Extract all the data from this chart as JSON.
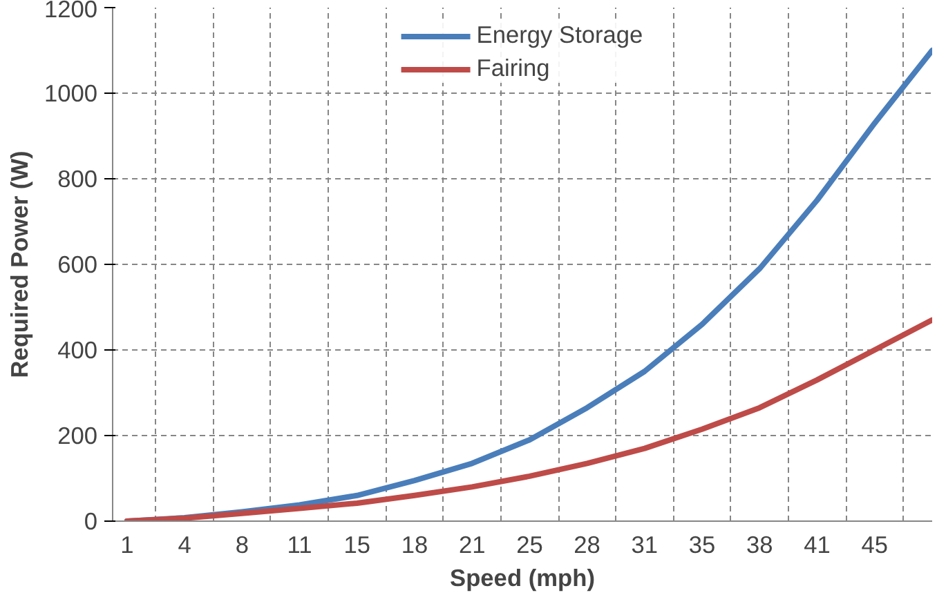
{
  "chart_data": {
    "type": "line",
    "xlabel": "Speed (mph)",
    "ylabel": "Required Power (W)",
    "categories": [
      "1",
      "4",
      "8",
      "11",
      "15",
      "18",
      "21",
      "25",
      "28",
      "31",
      "35",
      "38",
      "41",
      "45",
      null
    ],
    "series": [
      {
        "name": "Energy Storage",
        "color": "#4a7ebb",
        "values": [
          0,
          8,
          22,
          38,
          60,
          95,
          135,
          190,
          265,
          350,
          460,
          590,
          750,
          930,
          1100
        ]
      },
      {
        "name": "Fairing",
        "color": "#be4b48",
        "values": [
          0,
          7,
          18,
          30,
          42,
          60,
          80,
          105,
          135,
          170,
          215,
          265,
          330,
          400,
          470
        ]
      }
    ],
    "ylim": [
      0,
      1200
    ],
    "yticks": [
      0,
      200,
      400,
      600,
      800,
      1000,
      1200
    ],
    "grid": true,
    "line_style": "solid",
    "legend": "top"
  }
}
